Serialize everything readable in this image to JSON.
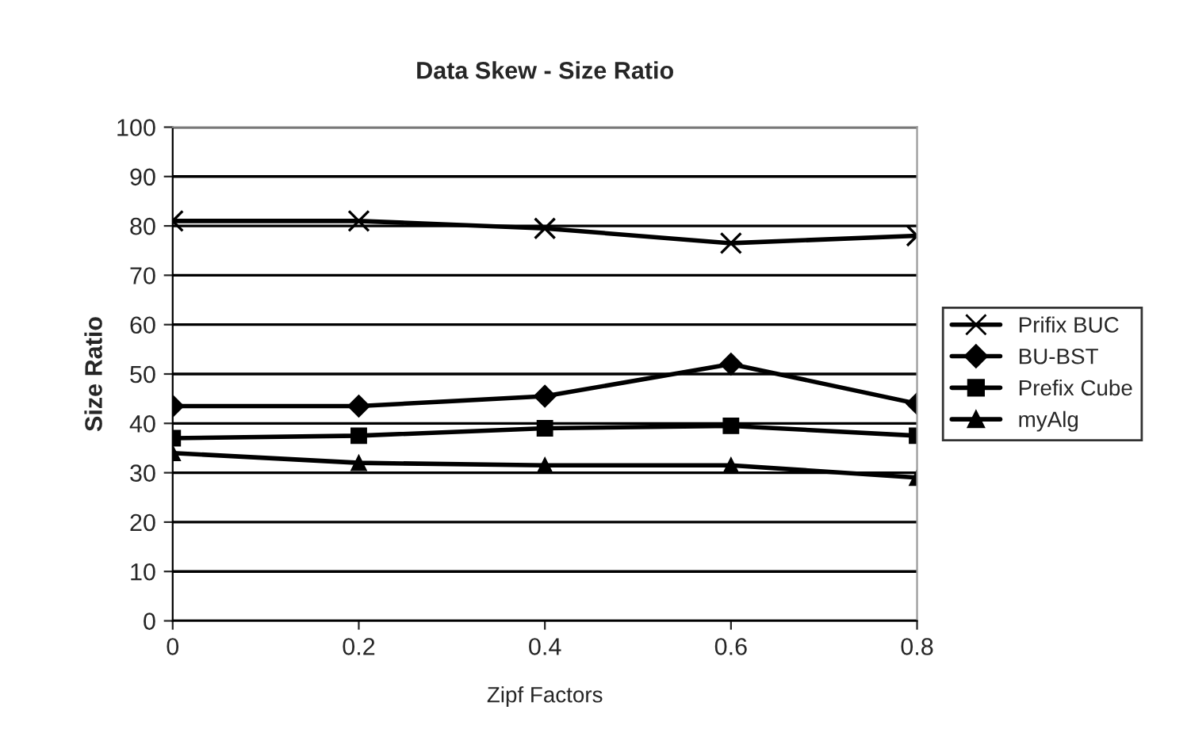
{
  "chart_data": {
    "type": "line",
    "title": "Data Skew - Size Ratio",
    "xlabel": "Zipf Factors",
    "ylabel": "Size Ratio",
    "x": [
      0,
      0.2,
      0.4,
      0.6,
      0.8
    ],
    "series": [
      {
        "name": "Prifix BUC",
        "color": "#000000",
        "marker": "cross",
        "values": [
          81,
          81,
          79.5,
          76.5,
          78
        ]
      },
      {
        "name": "BU-BST",
        "color": "#000000",
        "marker": "diamond",
        "values": [
          43.5,
          43.5,
          45.5,
          52,
          44
        ]
      },
      {
        "name": "Prefix Cube",
        "color": "#000000",
        "marker": "square",
        "values": [
          37,
          37.5,
          39,
          39.5,
          37.5
        ]
      },
      {
        "name": "myAlg",
        "color": "#000000",
        "marker": "triangle",
        "values": [
          34,
          32,
          31.5,
          31.5,
          29
        ]
      }
    ],
    "xlim": [
      0,
      0.8
    ],
    "xticks": [
      0,
      0.2,
      0.4,
      0.6,
      0.8
    ],
    "ylim": [
      0,
      100
    ],
    "yticks": [
      0,
      10,
      20,
      30,
      40,
      50,
      60,
      70,
      80,
      90,
      100
    ],
    "grid": "y",
    "legend": "right",
    "line_style": "solid"
  }
}
